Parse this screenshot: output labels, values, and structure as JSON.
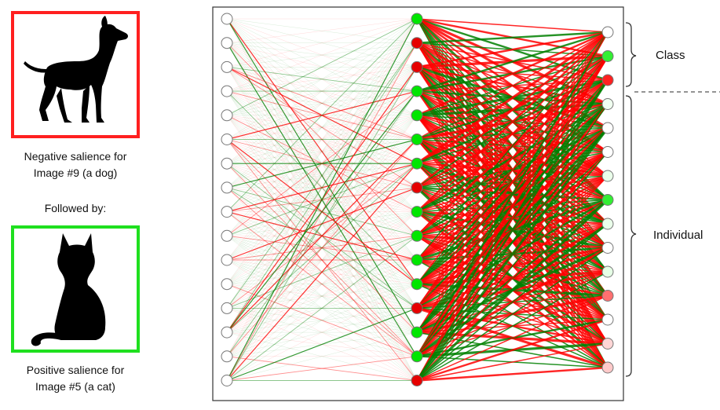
{
  "left_panel": {
    "negative_caption": [
      "Negative salience for",
      "Image #9 (a dog)"
    ],
    "followed_caption": "Followed by:",
    "positive_caption": [
      "Positive salience for",
      "Image #5 (a cat)"
    ],
    "dog_icon": "dog-silhouette-icon",
    "cat_icon": "cat-silhouette-icon",
    "colors": {
      "negative": "#ff1f1f",
      "positive": "#1fe01f"
    }
  },
  "labels": {
    "class": "Class",
    "individual": "Individual"
  },
  "network": {
    "layers": {
      "input": 16,
      "hidden": 16,
      "output": 15
    },
    "output_groups": {
      "class_count": 3,
      "individual_count": 12
    },
    "hidden_node_colors": [
      "#00e600",
      "#e60000",
      "#e60000",
      "#00e600",
      "#00e600",
      "#00e600",
      "#00e600",
      "#e60000",
      "#00e600",
      "#00e600",
      "#00e600",
      "#00e600",
      "#e60000",
      "#00e600",
      "#00e600",
      "#e60000"
    ],
    "output_node_colors": [
      "#ffffff",
      "#33ee33",
      "#ff2020",
      "#f0fff0",
      "#ffffff",
      "#ffffff",
      "#eaffea",
      "#33ee33",
      "#eaffea",
      "#ffffff",
      "#e6ffe6",
      "#ff7070",
      "#ffffff",
      "#ffd6d6",
      "#ffc9c9"
    ],
    "input_node_color": "#ffffff",
    "edge_colors": {
      "positive": "#008000",
      "negative": "#ff0000"
    }
  }
}
